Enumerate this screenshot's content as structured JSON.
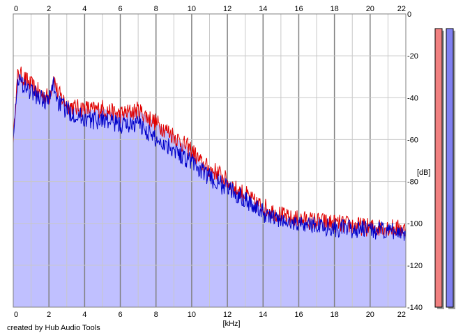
{
  "footer": {
    "credit": "created by Hub Audio Tools"
  },
  "colors": {
    "fill": "#c0c0ff",
    "channel_left": "#e00000",
    "channel_right": "#0000c8",
    "grid_minor": "#c8c8c8",
    "grid_major": "#808080",
    "meter_left": "#f08080",
    "meter_right": "#8080f0",
    "meter_shadow": "#a0a0a0"
  },
  "chart_data": {
    "type": "line",
    "title": "",
    "xlabel": "[kHz]",
    "ylabel": "[dB]",
    "xlim": [
      0,
      22
    ],
    "ylim": [
      -140,
      0
    ],
    "x_ticks": [
      "0",
      "2",
      "4",
      "6",
      "8",
      "10",
      "12",
      "14",
      "16",
      "18",
      "20",
      "22"
    ],
    "y_ticks": [
      "0",
      "-20",
      "-40",
      "-60",
      "-80",
      "-100",
      "-120",
      "-140"
    ],
    "grid": true,
    "legend": "none",
    "x": [
      0,
      0.25,
      0.5,
      0.75,
      1,
      1.5,
      2,
      2.25,
      2.5,
      3,
      3.5,
      4,
      4.5,
      5,
      5.5,
      6,
      6.5,
      7,
      7.5,
      8,
      8.5,
      9,
      9.5,
      10,
      10.5,
      11,
      11.5,
      12,
      12.5,
      13,
      13.5,
      14,
      14.5,
      15,
      15.5,
      16,
      17,
      18,
      19,
      20,
      21,
      22
    ],
    "series": [
      {
        "values": [
          -60,
          -28,
          -30,
          -32,
          -34,
          -38,
          -40,
          -30,
          -38,
          -43,
          -45,
          -45,
          -46,
          -45,
          -47,
          -48,
          -47,
          -46,
          -49,
          -52,
          -55,
          -58,
          -62,
          -65,
          -71,
          -74,
          -76,
          -80,
          -84,
          -86,
          -90,
          -92,
          -94,
          -96,
          -98,
          -98,
          -99,
          -100,
          -101,
          -102,
          -102,
          -103
        ]
      },
      {
        "values": [
          -58,
          -32,
          -33,
          -35,
          -37,
          -40,
          -42,
          -33,
          -42,
          -46,
          -48,
          -50,
          -51,
          -50,
          -52,
          -53,
          -53,
          -52,
          -56,
          -60,
          -62,
          -64,
          -68,
          -70,
          -75,
          -78,
          -81,
          -83,
          -86,
          -88,
          -92,
          -95,
          -97,
          -99,
          -100,
          -100,
          -101,
          -102,
          -103,
          -103,
          -104,
          -104
        ]
      }
    ],
    "meters": {
      "left": -7,
      "right": -7
    }
  }
}
